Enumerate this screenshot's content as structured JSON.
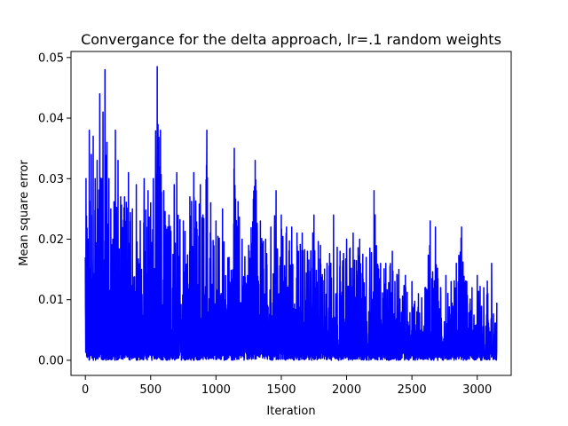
{
  "chart_data": {
    "type": "line",
    "title": "Convergance for the delta approach, lr=.1 random weights",
    "xlabel": "Iteration",
    "ylabel": "Mean square error",
    "xlim": [
      -110,
      3260
    ],
    "ylim": [
      -0.0025,
      0.051
    ],
    "x_ticks": [
      0,
      500,
      1000,
      1500,
      2000,
      2500,
      3000
    ],
    "x_tick_labels": [
      "0",
      "500",
      "1000",
      "1500",
      "2000",
      "2500",
      "3000"
    ],
    "y_ticks": [
      0.0,
      0.01,
      0.02,
      0.03,
      0.04,
      0.05
    ],
    "y_tick_labels": [
      "0.00",
      "0.01",
      "0.02",
      "0.03",
      "0.04",
      "0.05"
    ],
    "grid": false,
    "series": [
      {
        "color": "#0000ff",
        "x_start": 0,
        "x_end": 3150,
        "peaks": [
          [
            0,
            0.017
          ],
          [
            5,
            0.03
          ],
          [
            20,
            0.02
          ],
          [
            30,
            0.038
          ],
          [
            45,
            0.034
          ],
          [
            60,
            0.037
          ],
          [
            75,
            0.03
          ],
          [
            90,
            0.033
          ],
          [
            100,
            0.025
          ],
          [
            110,
            0.044
          ],
          [
            125,
            0.03
          ],
          [
            135,
            0.041
          ],
          [
            150,
            0.048
          ],
          [
            165,
            0.036
          ],
          [
            180,
            0.03
          ],
          [
            195,
            0.025
          ],
          [
            210,
            0.02
          ],
          [
            230,
            0.038
          ],
          [
            250,
            0.033
          ],
          [
            270,
            0.027
          ],
          [
            300,
            0.027
          ],
          [
            330,
            0.031
          ],
          [
            360,
            0.025
          ],
          [
            390,
            0.029
          ],
          [
            420,
            0.023
          ],
          [
            450,
            0.03
          ],
          [
            480,
            0.028
          ],
          [
            500,
            0.026
          ],
          [
            520,
            0.03
          ],
          [
            550,
            0.0485
          ],
          [
            575,
            0.038
          ],
          [
            600,
            0.028
          ],
          [
            640,
            0.024
          ],
          [
            680,
            0.029
          ],
          [
            700,
            0.031
          ],
          [
            750,
            0.023
          ],
          [
            800,
            0.027
          ],
          [
            830,
            0.031
          ],
          [
            880,
            0.029
          ],
          [
            900,
            0.024
          ],
          [
            930,
            0.038
          ],
          [
            960,
            0.026
          ],
          [
            1000,
            0.023
          ],
          [
            1050,
            0.025
          ],
          [
            1100,
            0.017
          ],
          [
            1140,
            0.035
          ],
          [
            1200,
            0.02
          ],
          [
            1250,
            0.019
          ],
          [
            1300,
            0.033
          ],
          [
            1340,
            0.023
          ],
          [
            1380,
            0.02
          ],
          [
            1420,
            0.022
          ],
          [
            1460,
            0.028
          ],
          [
            1500,
            0.024
          ],
          [
            1540,
            0.022
          ],
          [
            1580,
            0.022
          ],
          [
            1620,
            0.021
          ],
          [
            1660,
            0.021
          ],
          [
            1700,
            0.018
          ],
          [
            1750,
            0.024
          ],
          [
            1800,
            0.019
          ],
          [
            1850,
            0.016
          ],
          [
            1900,
            0.024
          ],
          [
            1950,
            0.018
          ],
          [
            2000,
            0.02
          ],
          [
            2050,
            0.021
          ],
          [
            2100,
            0.02
          ],
          [
            2150,
            0.017
          ],
          [
            2210,
            0.028
          ],
          [
            2260,
            0.016
          ],
          [
            2300,
            0.016
          ],
          [
            2350,
            0.018
          ],
          [
            2400,
            0.015
          ],
          [
            2450,
            0.014
          ],
          [
            2500,
            0.013
          ],
          [
            2550,
            0.011
          ],
          [
            2600,
            0.012
          ],
          [
            2640,
            0.023
          ],
          [
            2680,
            0.022
          ],
          [
            2720,
            0.012
          ],
          [
            2760,
            0.014
          ],
          [
            2800,
            0.013
          ],
          [
            2840,
            0.016
          ],
          [
            2880,
            0.022
          ],
          [
            2920,
            0.013
          ],
          [
            2960,
            0.012
          ],
          [
            3000,
            0.014
          ],
          [
            3050,
            0.012
          ],
          [
            3110,
            0.016
          ],
          [
            3150,
            0.0095
          ]
        ]
      }
    ]
  }
}
